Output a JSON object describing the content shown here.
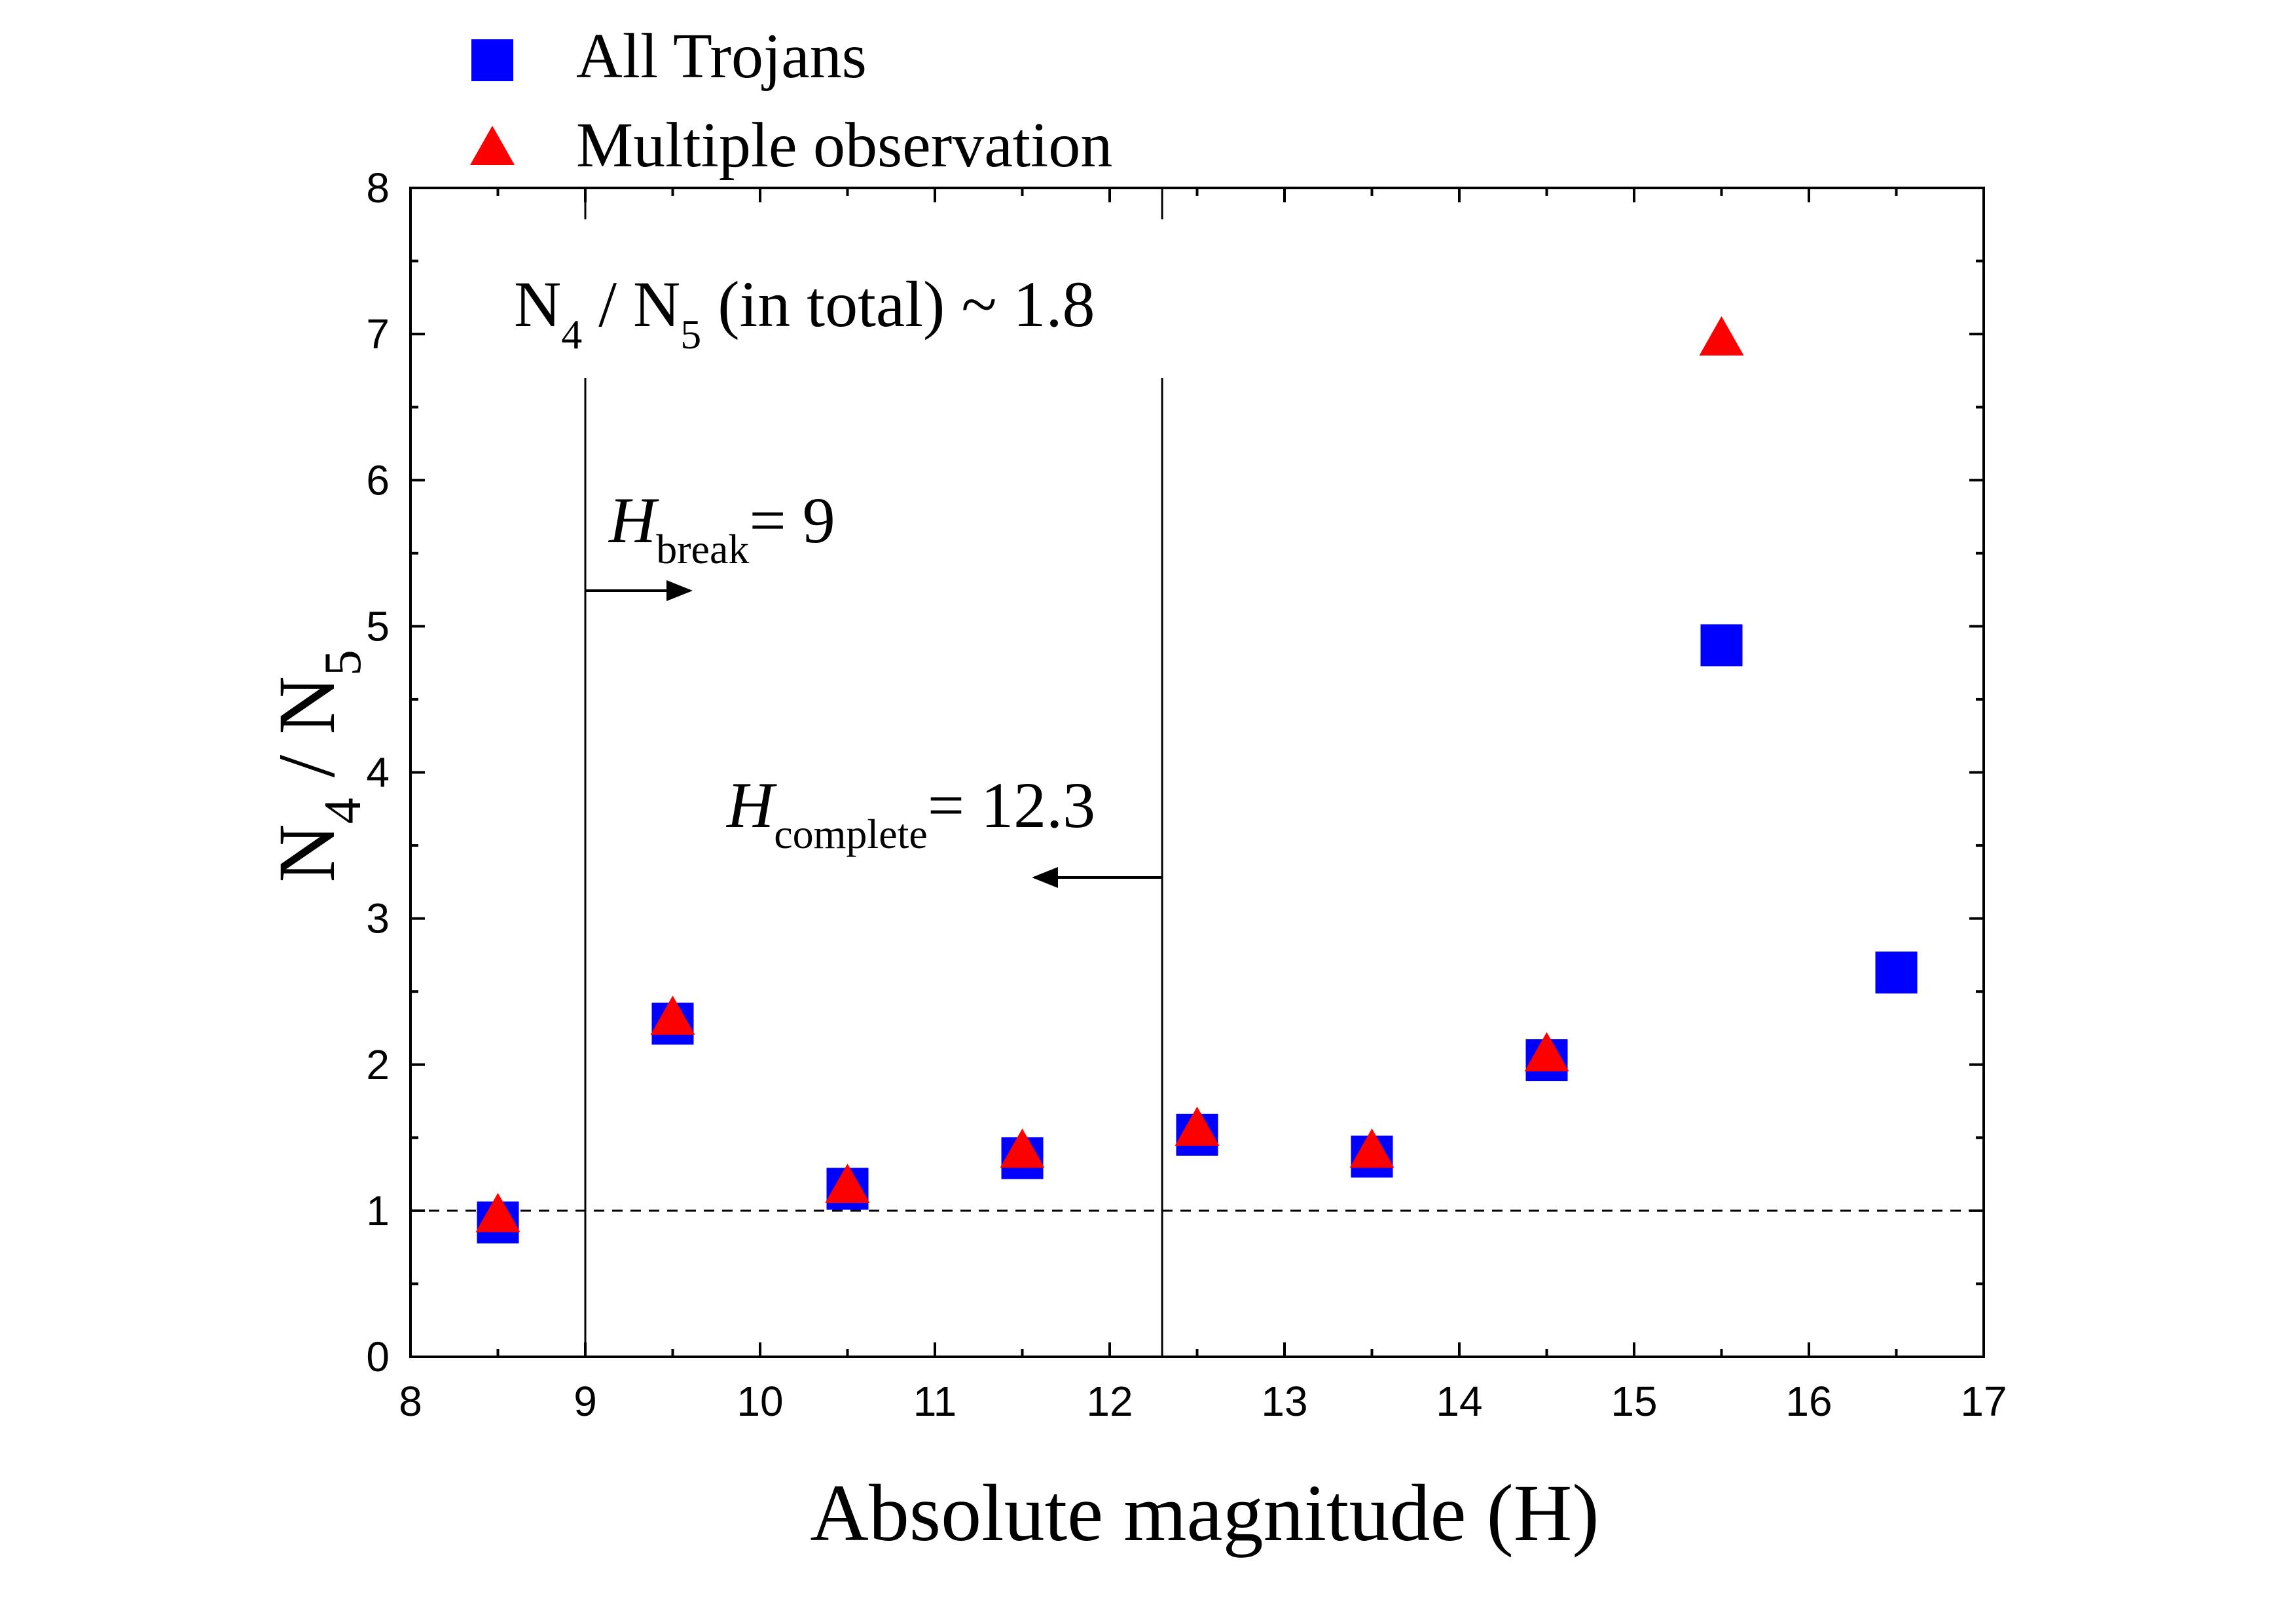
{
  "chart_data": {
    "type": "scatter",
    "xlabel": "Absolute magnitude (H)",
    "ylabel": {
      "main": "N",
      "sub1": "4",
      "sep": " / N",
      "sub2": "5"
    },
    "xlim": [
      8,
      17
    ],
    "ylim": [
      0,
      8
    ],
    "xticks": [
      8,
      9,
      10,
      11,
      12,
      13,
      14,
      15,
      16,
      17
    ],
    "yticks": [
      0,
      1,
      2,
      3,
      4,
      5,
      6,
      7,
      8
    ],
    "legend_position": "top-left, above plot",
    "series": [
      {
        "name": "All Trojans",
        "marker": "square",
        "color": "#0000ff",
        "points": [
          {
            "x": 8.5,
            "y": 0.92
          },
          {
            "x": 9.5,
            "y": 2.28
          },
          {
            "x": 10.5,
            "y": 1.15
          },
          {
            "x": 11.5,
            "y": 1.36
          },
          {
            "x": 12.5,
            "y": 1.52
          },
          {
            "x": 13.5,
            "y": 1.37
          },
          {
            "x": 14.5,
            "y": 2.03
          },
          {
            "x": 15.5,
            "y": 4.87
          },
          {
            "x": 16.5,
            "y": 2.63
          }
        ]
      },
      {
        "name": "Multiple observation",
        "marker": "triangle",
        "color": "#ff0000",
        "points": [
          {
            "x": 8.5,
            "y": 0.97
          },
          {
            "x": 9.5,
            "y": 2.32
          },
          {
            "x": 10.5,
            "y": 1.17
          },
          {
            "x": 11.5,
            "y": 1.41
          },
          {
            "x": 12.5,
            "y": 1.56
          },
          {
            "x": 13.5,
            "y": 1.41
          },
          {
            "x": 14.5,
            "y": 2.07
          },
          {
            "x": 15.5,
            "y": 6.97
          }
        ]
      }
    ],
    "reference_lines": [
      {
        "type": "horizontal",
        "y": 1,
        "style": "dashed"
      },
      {
        "type": "vertical",
        "x": 9,
        "style": "solid"
      },
      {
        "type": "vertical",
        "x": 12.3,
        "style": "solid"
      }
    ],
    "annotations": {
      "ratio_text": {
        "n": "N",
        "sub1": "4",
        "mid": " / N",
        "sub2": "5",
        "tail": " (in total) ~ 1.8"
      },
      "h_break": {
        "h": "H",
        "sub": "break",
        "value": "= 9",
        "arrow_direction": "right"
      },
      "h_complete": {
        "h": "H",
        "sub": "complete",
        "value": "= 12.3",
        "arrow_direction": "left"
      }
    }
  }
}
